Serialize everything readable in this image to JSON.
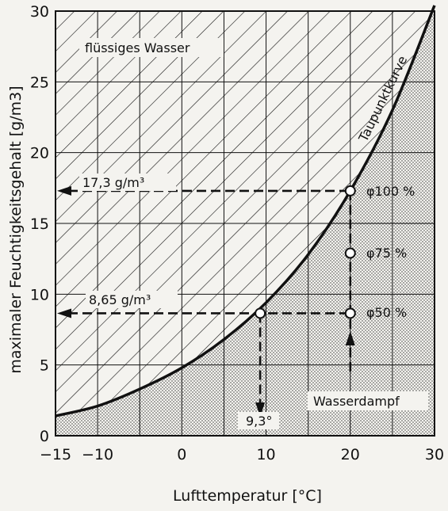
{
  "chart_data": {
    "type": "line",
    "xlabel": "Lufttemperatur [°C]",
    "ylabel": "maximaler Feuchtigkeitsgehalt [g/m3]",
    "xlim": [
      -15,
      30
    ],
    "ylim": [
      0,
      30
    ],
    "x_ticks": [
      -15,
      -10,
      0,
      10,
      20,
      30
    ],
    "y_ticks": [
      0,
      5,
      10,
      15,
      20,
      25,
      30
    ],
    "grid": true,
    "series": [
      {
        "name": "Taupunktkurve",
        "x": [
          -15,
          -10,
          -5,
          0,
          5,
          10,
          15,
          20,
          25,
          30
        ],
        "y": [
          1.4,
          2.1,
          3.3,
          4.8,
          6.8,
          9.4,
          12.8,
          17.3,
          23.0,
          30.4
        ]
      }
    ],
    "regions": {
      "above": "flüssiges Wasser",
      "below": "Wasserdampf"
    },
    "markers": [
      {
        "x": 20,
        "y": 17.3,
        "label": "φ100 %"
      },
      {
        "x": 20,
        "y": 12.9,
        "label": "φ75 %"
      },
      {
        "x": 20,
        "y": 8.65,
        "label": "φ50 %"
      },
      {
        "x": 9.3,
        "y": 8.65,
        "label": ""
      }
    ],
    "annotations": [
      {
        "text": "17,3 g/m³",
        "y": 17.3
      },
      {
        "text": "8,65 g/m³",
        "y": 8.65
      },
      {
        "text": "9,3°",
        "x": 9.3
      }
    ]
  }
}
